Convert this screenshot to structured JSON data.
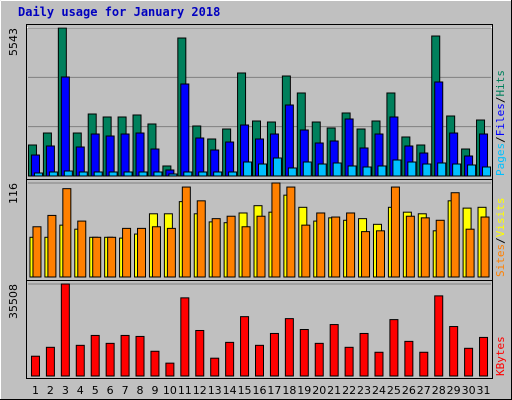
{
  "title": "Daily usage for January 2018",
  "legend_separator": "/",
  "chart_data": [
    {
      "type": "bar",
      "series": [
        {
          "name": "Hits",
          "color": "#00805c",
          "values": [
            1161,
            1610,
            5543,
            1610,
            2322,
            2210,
            2210,
            2285,
            1948,
            375,
            5168,
            1873,
            1386,
            1760,
            3858,
            2060,
            2022,
            3745,
            3109,
            2022,
            1798,
            2360,
            1760,
            2060,
            3109,
            1461,
            1161,
            5243,
            2247,
            1011,
            2097
          ]
        },
        {
          "name": "Files",
          "color": "#0000ff",
          "values": [
            786,
            1124,
            3708,
            1086,
            1573,
            1498,
            1573,
            1610,
            1011,
            225,
            3446,
            1423,
            974,
            1273,
            1910,
            1386,
            1573,
            2659,
            1723,
            1236,
            1311,
            2135,
            1049,
            1573,
            2210,
            1124,
            861,
            3521,
            1610,
            749,
            1573
          ]
        },
        {
          "name": "Pages",
          "color": "#00c0ff",
          "values": [
            112,
            150,
            187,
            150,
            150,
            150,
            150,
            150,
            150,
            75,
            150,
            150,
            150,
            150,
            524,
            449,
            674,
            300,
            524,
            449,
            487,
            375,
            337,
            375,
            599,
            524,
            449,
            487,
            449,
            412,
            337
          ]
        }
      ],
      "ylim": [
        0,
        5543
      ],
      "yticks": [
        5543
      ]
    },
    {
      "type": "bar",
      "series": [
        {
          "name": "Visits",
          "color": "#ffff00",
          "values": [
            49,
            49,
            64,
            59,
            49,
            49,
            48,
            53,
            78,
            78,
            93,
            78,
            68,
            67,
            79,
            88,
            80,
            101,
            86,
            69,
            73,
            70,
            72,
            65,
            86,
            80,
            78,
            57,
            94,
            85,
            86
          ]
        },
        {
          "name": "Sites",
          "color": "#ff8000",
          "values": [
            62,
            76,
            109,
            69,
            49,
            49,
            60,
            60,
            62,
            60,
            111,
            94,
            72,
            75,
            62,
            75,
            116,
            111,
            64,
            79,
            74,
            79,
            56,
            57,
            111,
            75,
            73,
            70,
            104,
            59,
            74
          ]
        }
      ],
      "ylim": [
        0,
        116
      ],
      "yticks": [
        116
      ]
    },
    {
      "type": "bar",
      "categories": [
        "1",
        "2",
        "3",
        "4",
        "5",
        "6",
        "7",
        "8",
        "9",
        "10",
        "11",
        "12",
        "13",
        "14",
        "15",
        "16",
        "17",
        "18",
        "19",
        "20",
        "21",
        "22",
        "23",
        "24",
        "25",
        "26",
        "27",
        "28",
        "29",
        "30",
        "31"
      ],
      "category_colors": [
        "#000000",
        "#000000",
        "#000000",
        "#000000",
        "#000000",
        "#00805c",
        "#00805c",
        "#000000",
        "#000000",
        "#000000",
        "#000000",
        "#000000",
        "#00805c",
        "#00805c",
        "#000000",
        "#000000",
        "#000000",
        "#000000",
        "#000000",
        "#00805c",
        "#00805c",
        "#000000",
        "#000000",
        "#000000",
        "#000000",
        "#000000",
        "#00805c",
        "#00805c",
        "#000000",
        "#000000",
        "#000000"
      ],
      "series": [
        {
          "name": "KBytes",
          "color": "#ff0000",
          "values": [
            7636,
            11072,
            35508,
            11836,
            15654,
            12600,
            15654,
            15272,
            9545,
            4963,
            30162,
            17563,
            6872,
            12981,
            22908,
            11836,
            16417,
            22144,
            17945,
            12600,
            19854,
            11072,
            16417,
            9163,
            21763,
            13363,
            9163,
            30926,
            19090,
            10690,
            14890
          ]
        }
      ],
      "ylim": [
        0,
        35508
      ],
      "yticks": [
        35508
      ]
    }
  ]
}
